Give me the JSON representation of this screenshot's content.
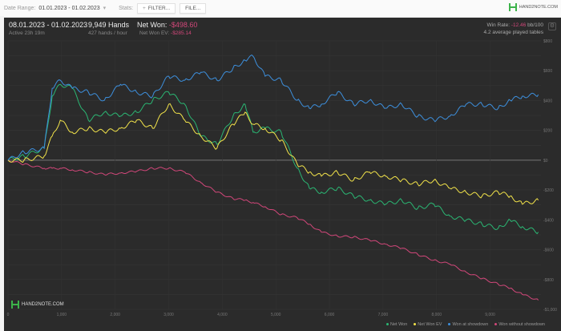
{
  "topbar": {
    "date_range_label": "Date Range:",
    "date_range_value": "01.01.2023 - 01.02.2023",
    "stats_label": "Stats:",
    "filter_button": "FILTER...",
    "file_button": "FILE...",
    "logo": "HAND2NOTE.COM"
  },
  "summary": {
    "period": "08.01.2023 - 01.02.2023",
    "active": "Active 23h 19m",
    "hands": "9,949 Hands",
    "hands_per_hour": "427 hands / hour",
    "net_won_label": "Net Won:",
    "net_won_value": "-$498.60",
    "net_won_ev_label": "Net Won  EV:",
    "net_won_ev_value": "-$285.14",
    "win_rate_label": "Win Rate:",
    "win_rate_value": "-12.46",
    "win_rate_unit": "bb/100",
    "avg_tables": "4.2 average played tables"
  },
  "watermark": "HAND2NOTE.COM",
  "chart_data": {
    "type": "line",
    "xlim": [
      0,
      9949
    ],
    "ylim": [
      -1000,
      800
    ],
    "x_ticks": [
      0,
      1000,
      2000,
      3000,
      4000,
      5000,
      6000,
      7000,
      8000,
      9000
    ],
    "x_tick_labels": [
      "0",
      "1,000",
      "2,000",
      "3,000",
      "4,000",
      "5,000",
      "6,000",
      "7,000",
      "8,000",
      "9,000"
    ],
    "y_ticks": [
      800,
      600,
      400,
      200,
      0,
      -200,
      -400,
      -600,
      -800,
      -1000
    ],
    "y_tick_labels": [
      "$800",
      "$600",
      "$400",
      "$200",
      "$0",
      "-$200",
      "-$400",
      "-$600",
      "-$800",
      "-$1,000"
    ],
    "x": [
      0,
      300,
      675,
      825,
      975,
      1200,
      1500,
      1800,
      2100,
      2400,
      2700,
      3000,
      3300,
      3600,
      3900,
      4200,
      4425,
      4575,
      4800,
      5100,
      5400,
      5625,
      5850,
      6150,
      6450,
      6750,
      7050,
      7350,
      7650,
      7950,
      8250,
      8550,
      8850,
      9150,
      9375,
      9600,
      9900
    ],
    "series": [
      {
        "name": "Net Won",
        "color": "#2bb673",
        "values": [
          0,
          27,
          80,
          429,
          509,
          482,
          268,
          322,
          295,
          322,
          402,
          456,
          375,
          161,
          107,
          295,
          375,
          188,
          214,
          188,
          -54,
          -188,
          -214,
          -188,
          -241,
          -268,
          -295,
          -268,
          -322,
          -295,
          -375,
          -402,
          -429,
          -456,
          -402,
          -445,
          -482
        ]
      },
      {
        "name": "Net Won  EV",
        "color": "#f2e34a",
        "values": [
          0,
          0,
          27,
          161,
          268,
          188,
          214,
          188,
          214,
          268,
          214,
          375,
          268,
          161,
          80,
          241,
          322,
          241,
          214,
          134,
          -27,
          -80,
          -107,
          -80,
          -134,
          -80,
          -107,
          -134,
          -161,
          -134,
          -188,
          -214,
          -241,
          -214,
          -241,
          -295,
          -268
        ]
      },
      {
        "name": "Won at showdown",
        "color": "#3d8fdc",
        "values": [
          0,
          54,
          80,
          482,
          536,
          482,
          456,
          402,
          509,
          456,
          429,
          563,
          536,
          590,
          536,
          616,
          670,
          697,
          563,
          536,
          402,
          348,
          375,
          456,
          375,
          402,
          348,
          375,
          295,
          268,
          295,
          375,
          375,
          348,
          402,
          429,
          440
        ]
      },
      {
        "name": "Won without showdown",
        "color": "#d2477a",
        "values": [
          0,
          -27,
          -54,
          -54,
          -54,
          -64,
          -80,
          -96,
          -86,
          -75,
          -54,
          -54,
          -80,
          -150,
          -214,
          -257,
          -268,
          -284,
          -311,
          -364,
          -386,
          -429,
          -482,
          -509,
          -515,
          -536,
          -563,
          -590,
          -632,
          -670,
          -697,
          -750,
          -793,
          -831,
          -858,
          -900,
          -938
        ]
      }
    ]
  }
}
